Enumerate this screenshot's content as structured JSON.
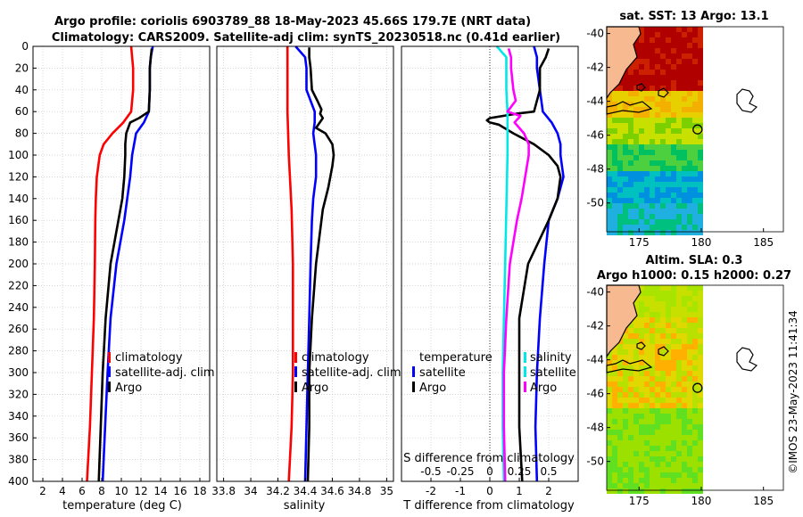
{
  "figure": {
    "title_line1": "Argo profile: coriolis 6903789_88 18-May-2023 45.66S 179.7E (NRT data)",
    "title_line2": "Climatology: CARS2009. Satellite-adj clim: synTS_20230518.nc (0.41d earlier)",
    "credit": "©IMOS 23-May-2023 11:41:34"
  },
  "colors": {
    "climatology": "#ff0000",
    "satellite": "#0000ff",
    "argo": "#000000",
    "salinity_diff": "#00e8e8",
    "salinity_satellite": "#ff00ff",
    "land": "#f7b990"
  },
  "chart_data": [
    {
      "type": "line",
      "name": "temperature",
      "xlabel": "temperature (deg C)",
      "ylabel": "",
      "xlim": [
        1,
        19
      ],
      "ylim": [
        400,
        0
      ],
      "xticks": [
        2,
        4,
        6,
        8,
        10,
        12,
        14,
        16,
        18
      ],
      "yticks": [
        0,
        20,
        40,
        60,
        80,
        100,
        120,
        140,
        160,
        180,
        200,
        220,
        240,
        260,
        280,
        300,
        320,
        340,
        360,
        380,
        400
      ],
      "grid": true,
      "legend": {
        "position": "lower-right",
        "entries": [
          "climatology",
          "satellite-adj. clim",
          "Argo"
        ]
      },
      "series": [
        {
          "name": "climatology",
          "color_key": "climatology",
          "depth": [
            0,
            20,
            40,
            60,
            70,
            80,
            90,
            100,
            120,
            140,
            160,
            200,
            250,
            300,
            350,
            400
          ],
          "values": [
            11.0,
            11.2,
            11.2,
            11.0,
            10.2,
            9.1,
            8.2,
            7.8,
            7.5,
            7.4,
            7.35,
            7.3,
            7.2,
            7.0,
            6.8,
            6.5
          ]
        },
        {
          "name": "satellite-adj. clim",
          "color_key": "satellite",
          "depth": [
            0,
            10,
            20,
            40,
            60,
            70,
            80,
            100,
            120,
            140,
            160,
            180,
            200,
            250,
            300,
            350,
            400
          ],
          "values": [
            13.2,
            13.0,
            12.9,
            12.9,
            12.8,
            12.3,
            11.5,
            11.1,
            10.9,
            10.6,
            10.3,
            9.9,
            9.5,
            8.9,
            8.6,
            8.35,
            8.1
          ]
        },
        {
          "name": "Argo",
          "color_key": "argo",
          "depth": [
            2,
            10,
            20,
            40,
            60,
            66,
            70,
            80,
            90,
            100,
            120,
            140,
            160,
            200,
            250,
            300,
            350,
            400
          ],
          "values": [
            13.1,
            13.0,
            12.9,
            12.9,
            12.8,
            11.8,
            10.9,
            10.5,
            10.4,
            10.4,
            10.3,
            10.1,
            9.7,
            8.9,
            8.4,
            8.1,
            7.9,
            7.7
          ]
        }
      ]
    },
    {
      "type": "line",
      "name": "salinity",
      "xlabel": "salinity",
      "ylabel": "",
      "xlim": [
        33.75,
        35.05
      ],
      "ylim": [
        400,
        0
      ],
      "xticks": [
        33.8,
        34,
        34.2,
        34.4,
        34.6,
        34.8,
        35
      ],
      "xtick_labels": [
        "33.8",
        "34",
        "34.2",
        "34.4",
        "34.6",
        "34.8",
        "35"
      ],
      "grid": true,
      "legend": {
        "position": "lower-right",
        "entries": [
          "climatology",
          "satellite-adj. clim",
          "Argo"
        ]
      },
      "series": [
        {
          "name": "climatology",
          "color_key": "climatology",
          "depth": [
            0,
            20,
            40,
            60,
            100,
            150,
            200,
            250,
            300,
            350,
            400
          ],
          "values": [
            34.27,
            34.27,
            34.27,
            34.27,
            34.28,
            34.3,
            34.31,
            34.31,
            34.31,
            34.3,
            34.28
          ]
        },
        {
          "name": "satellite-adj. clim",
          "color_key": "satellite",
          "depth": [
            0,
            10,
            20,
            40,
            60,
            70,
            80,
            100,
            120,
            140,
            160,
            200,
            250,
            300,
            350,
            400
          ],
          "values": [
            34.33,
            34.4,
            34.41,
            34.41,
            34.47,
            34.47,
            34.46,
            34.48,
            34.48,
            34.46,
            34.45,
            34.44,
            34.43,
            34.42,
            34.41,
            34.4
          ]
        },
        {
          "name": "Argo",
          "color_key": "argo",
          "depth": [
            1,
            10,
            20,
            40,
            50,
            58,
            62,
            66,
            75,
            80,
            90,
            100,
            110,
            130,
            150,
            200,
            250,
            300,
            350,
            400
          ],
          "values": [
            34.43,
            34.43,
            34.44,
            34.45,
            34.49,
            34.52,
            34.51,
            34.53,
            34.48,
            34.55,
            34.6,
            34.61,
            34.6,
            34.57,
            34.53,
            34.48,
            34.45,
            34.43,
            34.43,
            34.42
          ]
        }
      ]
    },
    {
      "type": "line",
      "name": "difference",
      "xlabel": "T difference from climatology",
      "secondary_label": "S difference from climatology",
      "xlim": [
        -3,
        3
      ],
      "ylim": [
        400,
        0
      ],
      "xticks": [
        -2,
        -1,
        0,
        1,
        2
      ],
      "secondary_ticks": [
        -0.5,
        -0.25,
        0,
        0.25,
        0.5
      ],
      "secondary_tick_labels": [
        "-0.5",
        "-0.25",
        "0",
        "0.25",
        "0.5"
      ],
      "grid": true,
      "legend": {
        "position": "lower-center",
        "group1_title": "temperature",
        "group1_entries": [
          "satellite",
          "Argo"
        ],
        "group2_title": "salinity",
        "group2_entries": [
          "satellite",
          "Argo"
        ]
      },
      "series": [
        {
          "name": "temperature satellite",
          "color_key": "satellite",
          "depth": [
            0,
            10,
            20,
            40,
            60,
            70,
            80,
            90,
            100,
            120,
            140,
            160,
            200,
            250,
            300,
            350,
            400
          ],
          "values": [
            1.5,
            1.6,
            1.6,
            1.7,
            1.8,
            2.1,
            2.3,
            2.4,
            2.4,
            2.5,
            2.3,
            2.0,
            1.85,
            1.7,
            1.6,
            1.55,
            1.6
          ]
        },
        {
          "name": "temperature Argo",
          "color_key": "argo",
          "depth": [
            2,
            10,
            20,
            40,
            60,
            62,
            66,
            68,
            70,
            72,
            80,
            90,
            100,
            110,
            120,
            140,
            160,
            200,
            250,
            300,
            350,
            400
          ],
          "values": [
            2.0,
            1.9,
            1.7,
            1.7,
            1.5,
            0.9,
            0.0,
            -0.1,
            0.0,
            0.3,
            0.8,
            1.5,
            2.0,
            2.3,
            2.4,
            2.3,
            2.0,
            1.3,
            1.0,
            1.0,
            1.0,
            1.1
          ]
        },
        {
          "name": "salinity satellite",
          "color_key": "salinity_diff",
          "depth": [
            0,
            10,
            20,
            40,
            60,
            80,
            100,
            150,
            200,
            250,
            300,
            350,
            400
          ],
          "values": [
            0.06,
            0.14,
            0.14,
            0.14,
            0.15,
            0.15,
            0.15,
            0.14,
            0.13,
            0.12,
            0.11,
            0.11,
            0.12
          ]
        },
        {
          "name": "salinity Argo",
          "color_key": "salinity_satellite",
          "depth": [
            2,
            10,
            20,
            40,
            50,
            60,
            64,
            70,
            80,
            90,
            100,
            120,
            140,
            160,
            200,
            250,
            300,
            350,
            400
          ],
          "values": [
            0.16,
            0.18,
            0.18,
            0.2,
            0.22,
            0.15,
            0.26,
            0.21,
            0.29,
            0.33,
            0.33,
            0.3,
            0.27,
            0.23,
            0.17,
            0.14,
            0.12,
            0.12,
            0.13
          ]
        }
      ]
    },
    {
      "type": "heatmap",
      "name": "sst-map",
      "title": "sat. SST: 13 Argo: 13.1",
      "xticks": [
        175,
        180,
        185
      ],
      "yticks": [
        -40,
        -42,
        -44,
        -46,
        -48,
        -50
      ],
      "profile_marker": {
        "lon": 179.7,
        "lat": -45.66
      }
    },
    {
      "type": "heatmap",
      "name": "sla-map",
      "title_line1": "Altim. SLA: 0.3",
      "title_line2": "Argo h1000: 0.15 h2000: 0.27",
      "xticks": [
        175,
        180,
        185
      ],
      "yticks": [
        -40,
        -42,
        -44,
        -46,
        -48,
        -50
      ],
      "profile_marker": {
        "lon": 179.7,
        "lat": -45.66
      }
    }
  ]
}
